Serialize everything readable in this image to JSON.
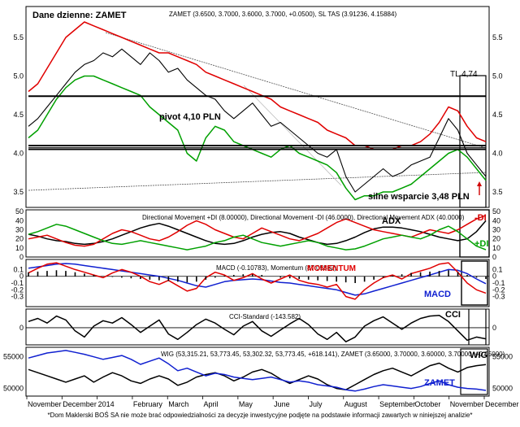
{
  "chart_data": [
    {
      "type": "line",
      "panel": "price",
      "corner_label": "Dane dzienne: ZAMET",
      "indicator_text": "ZAMET (3.6500, 3.7000, 3.6000, 3.7000, +0.0500), SL TAS (3.91236, 4.15884)",
      "ylim": [
        3.3,
        5.9
      ],
      "yticks": [
        "5.5",
        "5.0",
        "4.5",
        "4.0",
        "3.5"
      ],
      "ytick_values": [
        5.5,
        5.0,
        4.5,
        4.0,
        3.5
      ],
      "series": [
        {
          "name": "ZAMET",
          "color": "#000000",
          "values": [
            4.35,
            4.45,
            4.6,
            4.75,
            4.9,
            5.05,
            5.15,
            5.2,
            5.3,
            5.25,
            5.35,
            5.25,
            5.15,
            5.3,
            5.2,
            5.05,
            5.1,
            4.95,
            4.85,
            4.75,
            4.7,
            4.55,
            4.45,
            4.55,
            4.65,
            4.5,
            4.35,
            4.4,
            4.3,
            4.2,
            4.1,
            4.0,
            3.95,
            4.05,
            3.7,
            3.5,
            3.6,
            3.7,
            3.8,
            3.7,
            3.75,
            3.85,
            3.9,
            3.95,
            4.2,
            4.45,
            4.3,
            4.0,
            3.85,
            3.7
          ]
        },
        {
          "name": "SL TAS high",
          "color": "#e00000",
          "values": [
            4.8,
            4.9,
            5.1,
            5.3,
            5.5,
            5.6,
            5.7,
            5.65,
            5.6,
            5.55,
            5.5,
            5.45,
            5.4,
            5.35,
            5.3,
            5.3,
            5.25,
            5.2,
            5.15,
            5.05,
            5.0,
            4.95,
            4.9,
            4.85,
            4.8,
            4.75,
            4.7,
            4.6,
            4.55,
            4.5,
            4.45,
            4.4,
            4.3,
            4.25,
            4.2,
            4.1,
            4.1,
            4.05,
            4.05,
            4.05,
            4.1,
            4.1,
            4.15,
            4.25,
            4.4,
            4.6,
            4.55,
            4.35,
            4.2,
            4.15
          ]
        },
        {
          "name": "SL TAS low",
          "color": "#00a000",
          "values": [
            4.2,
            4.3,
            4.5,
            4.7,
            4.85,
            4.95,
            5.0,
            5.0,
            4.95,
            4.9,
            4.85,
            4.8,
            4.75,
            4.6,
            4.5,
            4.4,
            4.3,
            4.0,
            3.9,
            4.2,
            4.35,
            4.3,
            4.15,
            4.1,
            4.05,
            4.0,
            3.95,
            4.05,
            4.1,
            4.0,
            3.95,
            3.9,
            3.85,
            3.75,
            3.55,
            3.4,
            3.45,
            3.45,
            3.5,
            3.5,
            3.55,
            3.6,
            3.7,
            3.8,
            3.9,
            4.0,
            4.05,
            3.95,
            3.8,
            3.65
          ]
        }
      ],
      "levels": [
        {
          "label": "TL 4,74",
          "value": 4.74
        },
        {
          "label": "pivot 4,10 PLN",
          "value": 4.1
        },
        {
          "label": "",
          "value": 4.07
        },
        {
          "label": "",
          "value": 4.05
        }
      ],
      "support_label": "silne wsparcie 3,48 PLN"
    },
    {
      "type": "line",
      "panel": "adx",
      "indicator_text": "Directional Movement +DI (8.00000), Directional Movement -DI (46.0000), Directional Movement ADX (40.0000)",
      "ylim": [
        0,
        52
      ],
      "yticks": [
        "50",
        "40",
        "30",
        "20",
        "10",
        "0"
      ],
      "ytick_values": [
        50,
        40,
        30,
        20,
        10,
        0
      ],
      "labels": {
        "adx": "ADX",
        "minus_di": "-DI",
        "plus_di": "+DI"
      },
      "series": [
        {
          "name": "ADX",
          "color": "#000000",
          "values": [
            25,
            23,
            20,
            18,
            17,
            15,
            14,
            15,
            17,
            20,
            24,
            28,
            32,
            35,
            37,
            34,
            30,
            26,
            22,
            18,
            15,
            14,
            15,
            18,
            22,
            25,
            27,
            28,
            26,
            22,
            19,
            16,
            14,
            15,
            18,
            22,
            27,
            31,
            33,
            33,
            32,
            30,
            28,
            25,
            22,
            20,
            18,
            20,
            28,
            40
          ]
        },
        {
          "name": "-DI",
          "color": "#e00000",
          "values": [
            20,
            22,
            24,
            20,
            16,
            13,
            12,
            14,
            20,
            26,
            30,
            28,
            24,
            20,
            18,
            22,
            28,
            35,
            40,
            36,
            30,
            26,
            22,
            20,
            26,
            32,
            28,
            24,
            20,
            18,
            22,
            26,
            32,
            38,
            42,
            38,
            34,
            30,
            28,
            26,
            24,
            22,
            26,
            30,
            28,
            26,
            30,
            36,
            42,
            46
          ]
        },
        {
          "name": "+DI",
          "color": "#00a000",
          "values": [
            25,
            28,
            32,
            36,
            34,
            30,
            26,
            22,
            18,
            15,
            14,
            16,
            18,
            16,
            14,
            12,
            10,
            8,
            10,
            12,
            16,
            18,
            22,
            24,
            20,
            16,
            14,
            12,
            14,
            16,
            18,
            16,
            12,
            10,
            8,
            9,
            12,
            16,
            20,
            22,
            24,
            22,
            20,
            24,
            30,
            34,
            28,
            20,
            12,
            8
          ]
        }
      ]
    },
    {
      "type": "line",
      "panel": "macd",
      "indicator_text": "MACD (-0.10783), Momentum (87.05882)",
      "ylim": [
        -0.45,
        0.25
      ],
      "yticks": [
        "0.1",
        "0",
        "-0.1",
        "-0.2",
        "-0.3"
      ],
      "ytick_values": [
        0.1,
        0,
        -0.1,
        -0.2,
        -0.3
      ],
      "labels": {
        "momentum": "MOMENTUM",
        "macd": "MACD"
      },
      "series": [
        {
          "name": "MACD",
          "color": "#1020d0",
          "values": [
            0.12,
            0.14,
            0.16,
            0.18,
            0.19,
            0.18,
            0.16,
            0.14,
            0.12,
            0.1,
            0.08,
            0.06,
            0.04,
            0.02,
            0.0,
            -0.03,
            -0.06,
            -0.1,
            -0.14,
            -0.16,
            -0.12,
            -0.08,
            -0.06,
            -0.05,
            -0.04,
            -0.05,
            -0.07,
            -0.09,
            -0.1,
            -0.12,
            -0.14,
            -0.16,
            -0.18,
            -0.2,
            -0.24,
            -0.28,
            -0.26,
            -0.22,
            -0.18,
            -0.14,
            -0.1,
            -0.06,
            -0.02,
            0.02,
            0.06,
            0.1,
            0.09,
            0.04,
            -0.04,
            -0.11
          ]
        },
        {
          "name": "Momentum",
          "color": "#e00000",
          "values": [
            0.05,
            0.12,
            0.18,
            0.2,
            0.15,
            0.1,
            0.06,
            0.02,
            -0.02,
            0.05,
            0.1,
            0.06,
            0.0,
            -0.08,
            -0.12,
            -0.06,
            -0.14,
            -0.22,
            -0.18,
            -0.02,
            0.06,
            0.02,
            -0.06,
            -0.02,
            0.04,
            -0.04,
            -0.1,
            -0.04,
            0.02,
            -0.06,
            -0.1,
            -0.12,
            -0.16,
            -0.12,
            -0.3,
            -0.34,
            -0.2,
            -0.1,
            -0.02,
            0.02,
            -0.04,
            0.04,
            0.08,
            0.12,
            0.18,
            0.2,
            0.06,
            -0.1,
            -0.2,
            -0.25
          ]
        },
        {
          "name": "Histogram",
          "color": "#000000",
          "values": [
            0.06,
            0.07,
            0.08,
            0.09,
            0.08,
            0.06,
            0.04,
            0.02,
            0.0,
            -0.01,
            -0.02,
            -0.03,
            -0.04,
            -0.05,
            -0.06,
            -0.07,
            -0.08,
            -0.09,
            -0.08,
            -0.05,
            -0.02,
            0.01,
            0.02,
            0.03,
            0.03,
            0.02,
            0.0,
            -0.02,
            -0.03,
            -0.04,
            -0.05,
            -0.06,
            -0.07,
            -0.08,
            -0.09,
            -0.1,
            -0.08,
            -0.05,
            -0.02,
            0.01,
            0.03,
            0.05,
            0.06,
            0.07,
            0.08,
            0.09,
            0.06,
            0.02,
            -0.02,
            -0.04
          ]
        }
      ]
    },
    {
      "type": "line",
      "panel": "cci",
      "indicator_text": "CCI-Standard (-143.582)",
      "ylim": [
        -220,
        240
      ],
      "yticks": [
        "0"
      ],
      "ytick_values": [
        0
      ],
      "labels": {
        "cci": "CCI"
      },
      "series": [
        {
          "name": "CCI-Standard",
          "color": "#000000",
          "values": [
            80,
            120,
            60,
            150,
            100,
            -40,
            -120,
            20,
            90,
            60,
            130,
            40,
            -60,
            20,
            100,
            -80,
            -150,
            -60,
            40,
            110,
            60,
            -20,
            -90,
            20,
            80,
            -40,
            -110,
            -30,
            50,
            120,
            40,
            -80,
            -150,
            -60,
            -180,
            -120,
            20,
            90,
            140,
            60,
            -20,
            60,
            120,
            150,
            160,
            80,
            -40,
            -160,
            -120,
            -143
          ]
        }
      ]
    },
    {
      "type": "line",
      "panel": "wig",
      "indicator_text": "WIG (53,315.21, 53,773.45, 53,302.32, 53,773.45, +618.141), ZAMET (3.65000, 3.70000, 3.60000, 3.70000, +0.05000)",
      "ylim": [
        48800,
        56500
      ],
      "yticks": [
        "55000",
        "50000"
      ],
      "ytick_values": [
        55000,
        50000
      ],
      "labels": {
        "wig": "WIG",
        "zamet": "ZAMET"
      },
      "series": [
        {
          "name": "WIG",
          "color": "#000000",
          "values": [
            53000,
            52500,
            52000,
            51500,
            51000,
            51500,
            52000,
            51000,
            51800,
            52500,
            52000,
            51200,
            50800,
            51500,
            52000,
            51500,
            50500,
            51000,
            51800,
            52200,
            52500,
            52000,
            51200,
            51800,
            52600,
            53000,
            52400,
            51500,
            50800,
            51400,
            52000,
            51500,
            50600,
            50000,
            49800,
            50600,
            51400,
            52200,
            52800,
            53200,
            52600,
            52000,
            52800,
            53600,
            54000,
            53200,
            52600,
            53300,
            53600,
            53773
          ]
        },
        {
          "name": "ZAMET",
          "color": "#1020d0",
          "values": [
            54800,
            55200,
            55600,
            55800,
            56000,
            55700,
            55400,
            55000,
            54600,
            54900,
            55200,
            54600,
            53800,
            54300,
            54800,
            53900,
            52800,
            53200,
            52600,
            52000,
            52400,
            52200,
            51800,
            51600,
            51400,
            51600,
            51800,
            51400,
            51000,
            51200,
            51000,
            50600,
            50400,
            50200,
            49800,
            49600,
            49900,
            50300,
            50600,
            50400,
            50200,
            50000,
            50300,
            50800,
            51200,
            50600,
            50200,
            50000,
            49900,
            49700
          ]
        }
      ]
    },
    {
      "type": "axis",
      "x_tick_labels": [
        "November",
        "December",
        "2014",
        "February",
        "March",
        "April",
        "May",
        "June",
        "July",
        "August",
        "September",
        "October",
        "November",
        "December"
      ]
    }
  ],
  "footer": "*Dom Maklerski BOŚ SA nie może brać odpowiedzialności za decyzje inwestycyjne podjęte na podstawie informacji zawartych w niniejszej analizie*"
}
